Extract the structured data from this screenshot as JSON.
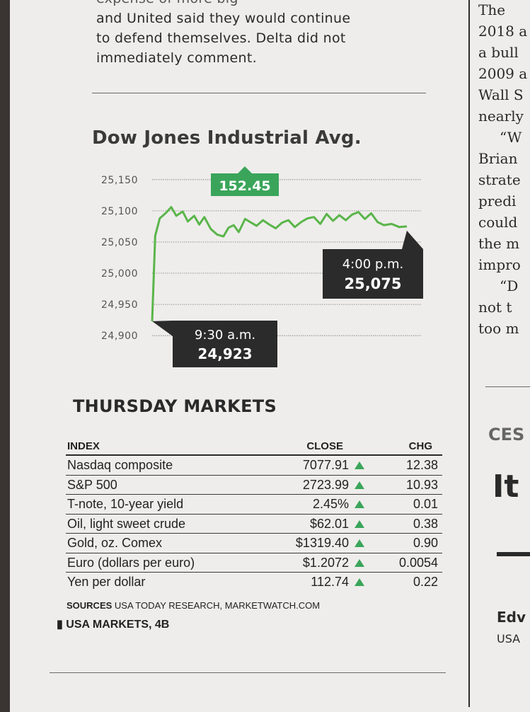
{
  "story_top": {
    "lines": [
      "expense of more big",
      "and United said they would continue",
      "to defend themselves. Delta did not",
      "immediately comment."
    ]
  },
  "right_column": {
    "lines": [
      "The",
      "2018 a",
      "a bull",
      "2009 a",
      "Wall S",
      "nearly",
      "“W",
      "Brian",
      "strate",
      "predi",
      "could",
      "the m",
      "impro",
      "“D",
      "not t",
      "too m"
    ],
    "section_label": "CES",
    "headline": "It",
    "byline": "Edv",
    "byline_org": "USA"
  },
  "chart_data": {
    "type": "line",
    "title": "Dow Jones Industrial Avg.",
    "ylim": [
      24890,
      25160
    ],
    "yticks": [
      25150,
      25100,
      25050,
      25000,
      24950,
      24900
    ],
    "ytick_labels": [
      "25,150",
      "25,100",
      "25,050",
      "25,000",
      "24,950",
      "24,900"
    ],
    "grid": true,
    "line_color": "#5ab54a",
    "accent_color": "#3aa55a",
    "callout_color": "#2b2b2b",
    "change_label": "152.45",
    "open": {
      "time": "9:30 a.m.",
      "value_label": "24,923",
      "value": 24923
    },
    "close": {
      "time": "4:00 p.m.",
      "value_label": "25,075",
      "value": 25075
    },
    "x": [
      0,
      0.012,
      0.03,
      0.055,
      0.075,
      0.095,
      0.12,
      0.14,
      0.165,
      0.185,
      0.205,
      0.23,
      0.255,
      0.28,
      0.3,
      0.32,
      0.34,
      0.365,
      0.385,
      0.41,
      0.435,
      0.46,
      0.485,
      0.51,
      0.535,
      0.56,
      0.585,
      0.61,
      0.635,
      0.66,
      0.685,
      0.71,
      0.735,
      0.76,
      0.785,
      0.81,
      0.835,
      0.86,
      0.885,
      0.91,
      0.94,
      0.97,
      1.0
    ],
    "values": [
      24923,
      25060,
      25088,
      25097,
      25106,
      25092,
      25099,
      25083,
      25092,
      25078,
      25090,
      25071,
      25062,
      25059,
      25073,
      25077,
      25066,
      25087,
      25082,
      25076,
      25085,
      25078,
      25072,
      25081,
      25085,
      25074,
      25082,
      25088,
      25090,
      25079,
      25095,
      25084,
      25093,
      25085,
      25094,
      25098,
      25087,
      25096,
      25082,
      25077,
      25079,
      25074,
      25075
    ]
  },
  "markets": {
    "title": "THURSDAY MARKETS",
    "headers": {
      "index": "INDEX",
      "close": "CLOSE",
      "chg": "CHG"
    },
    "rows": [
      {
        "index": "Nasdaq composite",
        "close": "7077.91",
        "chg": "12.38"
      },
      {
        "index": "S&P 500",
        "close": "2723.99",
        "chg": "10.93"
      },
      {
        "index": "T-note, 10-year yield",
        "close": "2.45%",
        "chg": "0.01"
      },
      {
        "index": "Oil, light sweet crude",
        "close": "$62.01",
        "chg": "0.38"
      },
      {
        "index": "Gold, oz. Comex",
        "close": "$1319.40",
        "chg": "0.90"
      },
      {
        "index": "Euro (dollars per euro)",
        "close": "$1.2072",
        "chg": "0.0054"
      },
      {
        "index": "Yen per dollar",
        "close": "112.74",
        "chg": "0.22"
      }
    ],
    "sources_label": "SOURCES",
    "sources_text": "USA TODAY RESEARCH, MARKETWATCH.COM",
    "reference": "USA MARKETS, 4B"
  }
}
